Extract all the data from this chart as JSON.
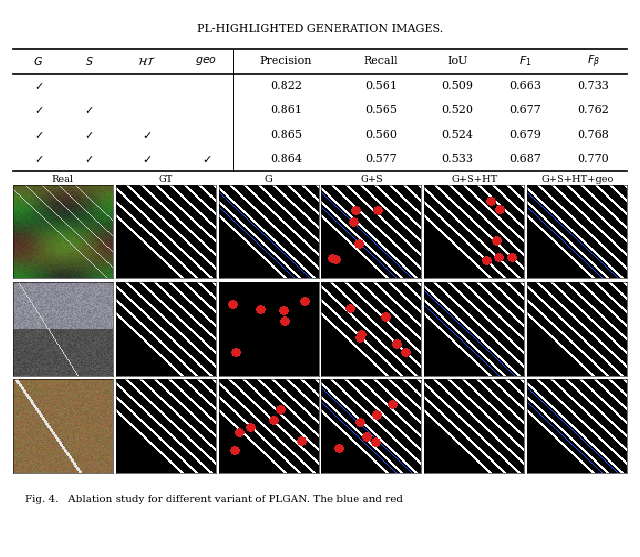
{
  "title_top": "PL-HIGHLIGHTED GENERATION IMAGES.",
  "headers_display": [
    "$G$",
    "$S$",
    "$\\mathcal{HT}$",
    "$geo$",
    "Precision",
    "Recall",
    "IoU",
    "$F_1$",
    "$F_{\\beta}$"
  ],
  "table_data": [
    [
      "$\\checkmark$",
      "",
      "",
      "",
      "0.822",
      "0.561",
      "0.509",
      "0.663",
      "0.733"
    ],
    [
      "$\\checkmark$",
      "$\\checkmark$",
      "",
      "",
      "0.861",
      "0.565",
      "0.520",
      "0.677",
      "0.762"
    ],
    [
      "$\\checkmark$",
      "$\\checkmark$",
      "$\\checkmark$",
      "",
      "0.865",
      "0.560",
      "0.524",
      "0.679",
      "0.768"
    ],
    [
      "$\\checkmark$",
      "$\\checkmark$",
      "$\\checkmark$",
      "$\\checkmark$",
      "0.864",
      "0.577",
      "0.533",
      "0.687",
      "0.770"
    ]
  ],
  "col_labels": [
    "Real",
    "GT",
    "G",
    "G+S",
    "G+S+HT",
    "G+S+HT+geo"
  ],
  "caption": "Fig. 4.   Ablation study for different variant of PLGAN. The blue and red",
  "bg_color": "#ffffff",
  "fig_width": 6.4,
  "fig_height": 5.57
}
